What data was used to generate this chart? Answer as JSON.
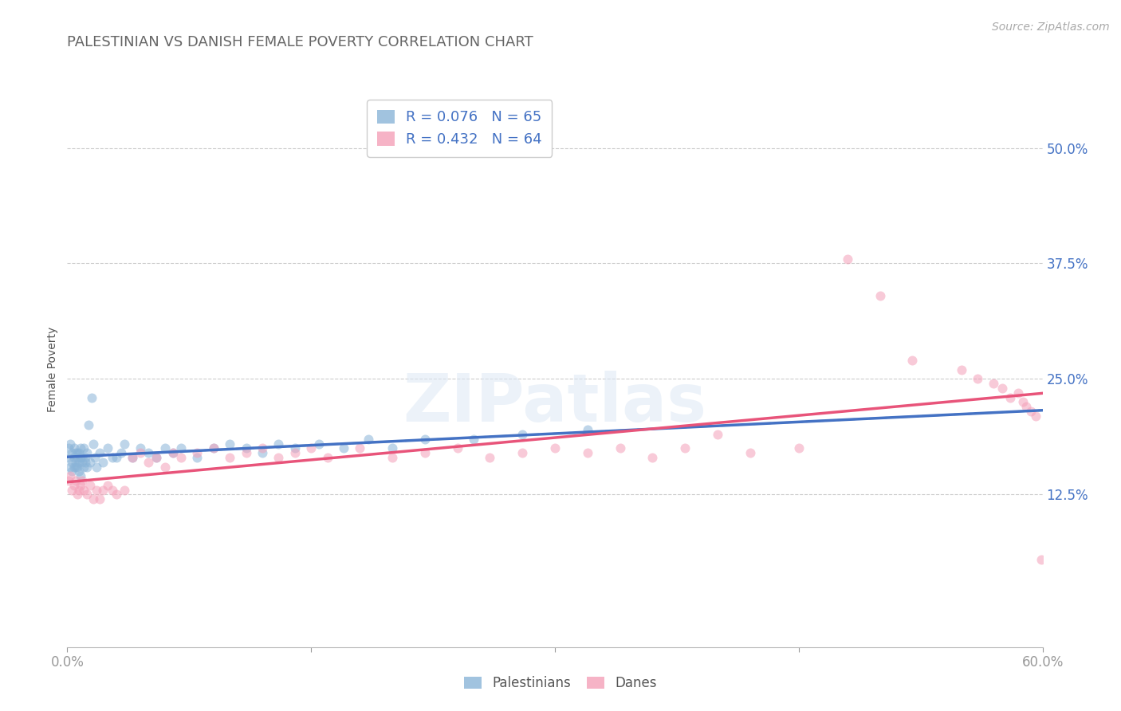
{
  "title": "PALESTINIAN VS DANISH FEMALE POVERTY CORRELATION CHART",
  "source": "Source: ZipAtlas.com",
  "ylabel": "Female Poverty",
  "watermark": "ZIPatlas",
  "xlim": [
    0.0,
    0.6
  ],
  "ylim": [
    -0.04,
    0.56
  ],
  "xticks": [
    0.0,
    0.15,
    0.3,
    0.45,
    0.6
  ],
  "xtick_labels": [
    "0.0%",
    "",
    "",
    "",
    "60.0%"
  ],
  "ytick_labels": [
    "12.5%",
    "25.0%",
    "37.5%",
    "50.0%"
  ],
  "ytick_positions": [
    0.125,
    0.25,
    0.375,
    0.5
  ],
  "title_color": "#666666",
  "title_fontsize": 13,
  "axis_color": "#4472c4",
  "pal_color": "#8ab4d8",
  "dane_color": "#f4a0b8",
  "pal_line_color": "#4472c4",
  "dane_line_color": "#e8547a",
  "R_pal": 0.076,
  "N_pal": 65,
  "R_dane": 0.432,
  "N_dane": 64,
  "pal_x": [
    0.001,
    0.001,
    0.002,
    0.002,
    0.003,
    0.003,
    0.003,
    0.004,
    0.004,
    0.004,
    0.005,
    0.005,
    0.005,
    0.006,
    0.006,
    0.006,
    0.007,
    0.007,
    0.007,
    0.008,
    0.008,
    0.008,
    0.009,
    0.009,
    0.01,
    0.01,
    0.011,
    0.011,
    0.012,
    0.012,
    0.013,
    0.014,
    0.015,
    0.016,
    0.017,
    0.018,
    0.02,
    0.022,
    0.025,
    0.028,
    0.03,
    0.033,
    0.035,
    0.04,
    0.045,
    0.05,
    0.055,
    0.06,
    0.065,
    0.07,
    0.08,
    0.09,
    0.1,
    0.11,
    0.12,
    0.13,
    0.14,
    0.155,
    0.17,
    0.185,
    0.2,
    0.22,
    0.25,
    0.28,
    0.32
  ],
  "pal_y": [
    0.165,
    0.175,
    0.155,
    0.18,
    0.16,
    0.17,
    0.15,
    0.165,
    0.175,
    0.155,
    0.16,
    0.17,
    0.155,
    0.165,
    0.17,
    0.155,
    0.16,
    0.17,
    0.15,
    0.165,
    0.175,
    0.145,
    0.16,
    0.165,
    0.155,
    0.175,
    0.16,
    0.165,
    0.155,
    0.17,
    0.2,
    0.16,
    0.23,
    0.18,
    0.165,
    0.155,
    0.17,
    0.16,
    0.175,
    0.165,
    0.165,
    0.17,
    0.18,
    0.165,
    0.175,
    0.17,
    0.165,
    0.175,
    0.17,
    0.175,
    0.165,
    0.175,
    0.18,
    0.175,
    0.17,
    0.18,
    0.175,
    0.18,
    0.175,
    0.185,
    0.175,
    0.185,
    0.185,
    0.19,
    0.195
  ],
  "dane_x": [
    0.001,
    0.002,
    0.003,
    0.004,
    0.005,
    0.006,
    0.007,
    0.008,
    0.009,
    0.01,
    0.012,
    0.014,
    0.016,
    0.018,
    0.02,
    0.022,
    0.025,
    0.028,
    0.03,
    0.035,
    0.04,
    0.045,
    0.05,
    0.055,
    0.06,
    0.065,
    0.07,
    0.08,
    0.09,
    0.1,
    0.11,
    0.12,
    0.13,
    0.14,
    0.15,
    0.16,
    0.18,
    0.2,
    0.22,
    0.24,
    0.26,
    0.28,
    0.3,
    0.32,
    0.34,
    0.36,
    0.38,
    0.4,
    0.42,
    0.45,
    0.48,
    0.5,
    0.52,
    0.55,
    0.56,
    0.57,
    0.575,
    0.58,
    0.585,
    0.588,
    0.59,
    0.593,
    0.596,
    0.599
  ],
  "dane_y": [
    0.14,
    0.145,
    0.13,
    0.135,
    0.14,
    0.125,
    0.13,
    0.135,
    0.14,
    0.13,
    0.125,
    0.135,
    0.12,
    0.13,
    0.12,
    0.13,
    0.135,
    0.13,
    0.125,
    0.13,
    0.165,
    0.17,
    0.16,
    0.165,
    0.155,
    0.17,
    0.165,
    0.17,
    0.175,
    0.165,
    0.17,
    0.175,
    0.165,
    0.17,
    0.175,
    0.165,
    0.175,
    0.165,
    0.17,
    0.175,
    0.165,
    0.17,
    0.175,
    0.17,
    0.175,
    0.165,
    0.175,
    0.19,
    0.17,
    0.175,
    0.38,
    0.34,
    0.27,
    0.26,
    0.25,
    0.245,
    0.24,
    0.23,
    0.235,
    0.225,
    0.22,
    0.215,
    0.21,
    0.055
  ],
  "background_color": "#ffffff",
  "grid_color": "#cccccc",
  "marker_size": 75,
  "marker_alpha": 0.55
}
